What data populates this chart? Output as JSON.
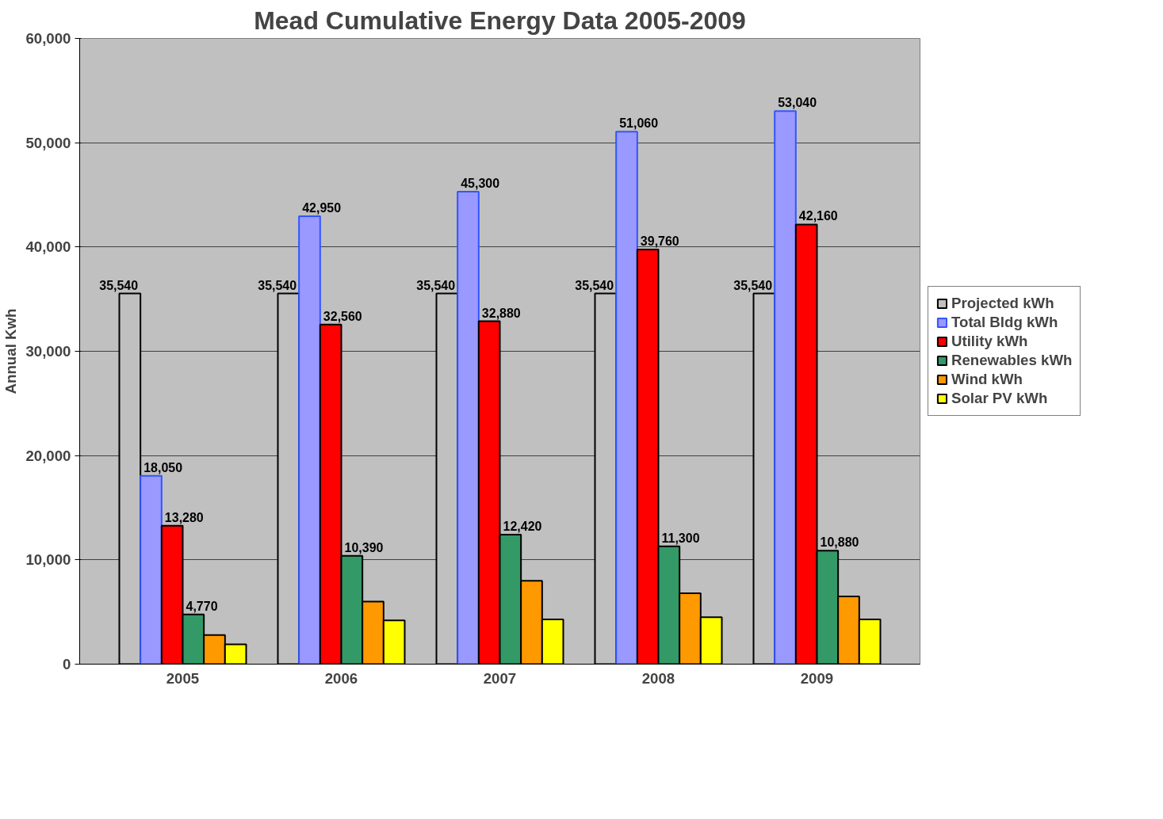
{
  "chart_data": {
    "type": "bar",
    "title": "Mead Cumulative Energy Data 2005-2009",
    "ylabel": "Annual Kwh",
    "categories": [
      "2005",
      "2006",
      "2007",
      "2008",
      "2009"
    ],
    "ylim": [
      0,
      60000
    ],
    "yticks": [
      {
        "value": 0,
        "label": "0"
      },
      {
        "value": 10000,
        "label": "10,000"
      },
      {
        "value": 20000,
        "label": "20,000"
      },
      {
        "value": 30000,
        "label": "30,000"
      },
      {
        "value": 40000,
        "label": "40,000"
      },
      {
        "value": 50000,
        "label": "50,000"
      },
      {
        "value": 60000,
        "label": "60,000"
      }
    ],
    "grid": "y",
    "legend": "right",
    "series": [
      {
        "name": "Projected kWh",
        "color": "#c0c0c0",
        "values": [
          35540,
          35540,
          35540,
          35540,
          35540
        ],
        "value_labels": [
          "35,540",
          "35,540",
          "35,540",
          "35,540",
          "35,540"
        ]
      },
      {
        "name": "Total Bldg kWh",
        "color": "#9999ff",
        "values": [
          18050,
          42950,
          45300,
          51060,
          53040
        ],
        "value_labels": [
          "18,050",
          "42,950",
          "45,300",
          "51,060",
          "53,040"
        ]
      },
      {
        "name": "Utility kWh",
        "color": "#ff0000",
        "values": [
          13280,
          32560,
          32880,
          39760,
          42160
        ],
        "value_labels": [
          "13,280",
          "32,560",
          "32,880",
          "39,760",
          "42,160"
        ]
      },
      {
        "name": "Renewables kWh",
        "color": "#339966",
        "values": [
          4770,
          10390,
          12420,
          11300,
          10880
        ],
        "value_labels": [
          "4,770",
          "10,390",
          "12,420",
          "11,300",
          "10,880"
        ]
      },
      {
        "name": "Wind kWh",
        "color": "#ff9900",
        "values": [
          2800,
          6000,
          8000,
          6800,
          6500
        ]
      },
      {
        "name": "Solar PV kWh",
        "color": "#ffff00",
        "values": [
          1900,
          4200,
          4300,
          4500,
          4300
        ]
      }
    ]
  }
}
